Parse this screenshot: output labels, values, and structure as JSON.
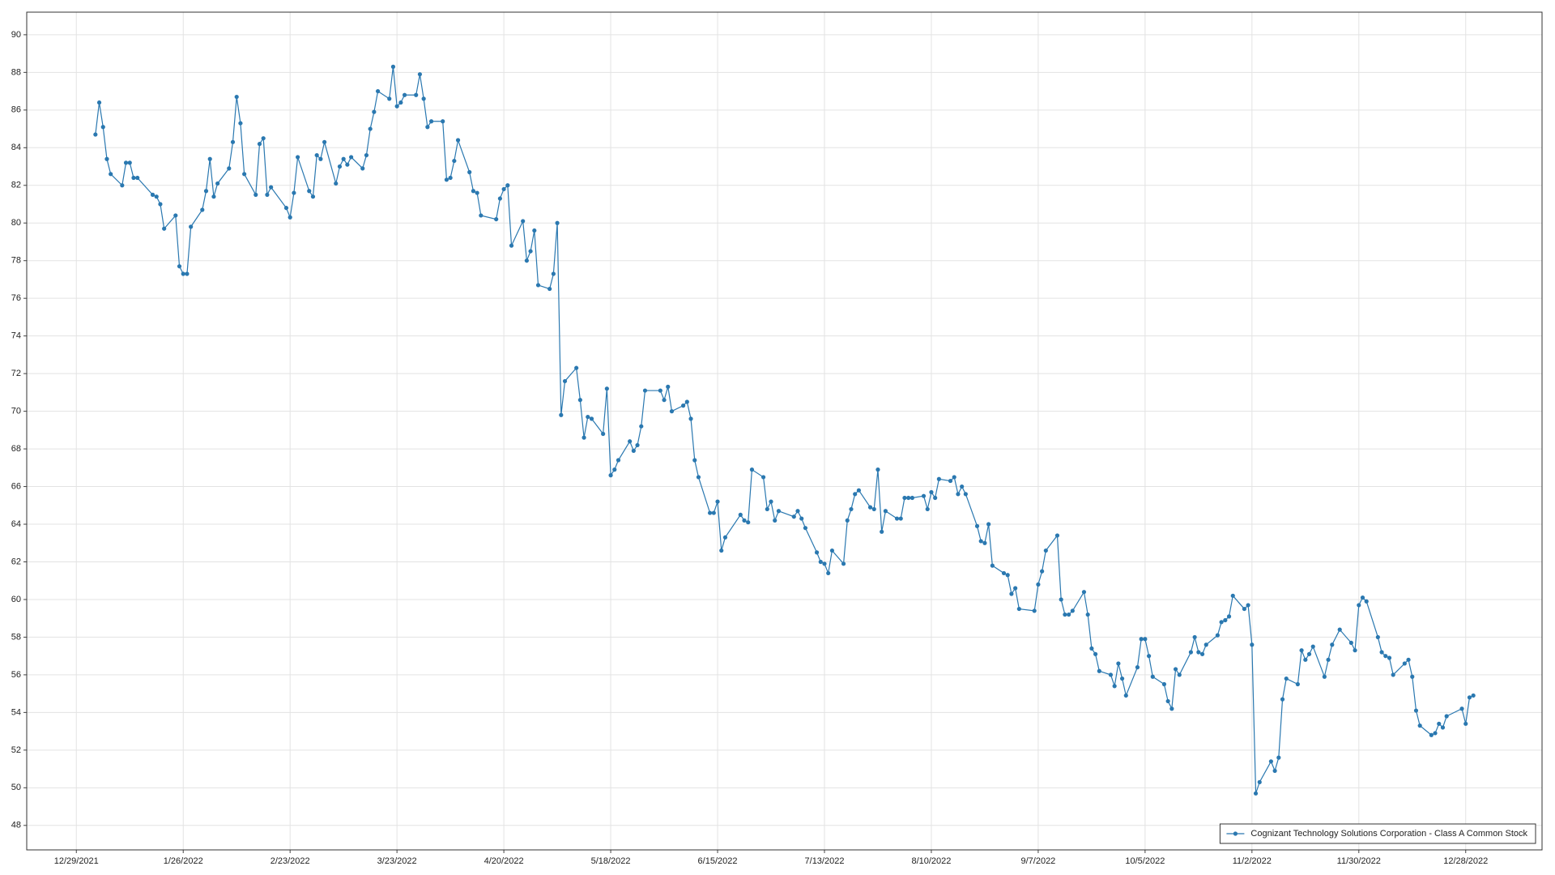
{
  "chart_data": {
    "type": "line",
    "x": [
      "2022-01-03",
      "2022-01-04",
      "2022-01-05",
      "2022-01-06",
      "2022-01-07",
      "2022-01-10",
      "2022-01-11",
      "2022-01-12",
      "2022-01-13",
      "2022-01-14",
      "2022-01-18",
      "2022-01-19",
      "2022-01-20",
      "2022-01-21",
      "2022-01-24",
      "2022-01-25",
      "2022-01-26",
      "2022-01-27",
      "2022-01-28",
      "2022-01-31",
      "2022-02-01",
      "2022-02-02",
      "2022-02-03",
      "2022-02-04",
      "2022-02-07",
      "2022-02-08",
      "2022-02-09",
      "2022-02-10",
      "2022-02-11",
      "2022-02-14",
      "2022-02-15",
      "2022-02-16",
      "2022-02-17",
      "2022-02-18",
      "2022-02-22",
      "2022-02-23",
      "2022-02-24",
      "2022-02-25",
      "2022-02-28",
      "2022-03-01",
      "2022-03-02",
      "2022-03-03",
      "2022-03-04",
      "2022-03-07",
      "2022-03-08",
      "2022-03-09",
      "2022-03-10",
      "2022-03-11",
      "2022-03-14",
      "2022-03-15",
      "2022-03-16",
      "2022-03-17",
      "2022-03-18",
      "2022-03-21",
      "2022-03-22",
      "2022-03-23",
      "2022-03-24",
      "2022-03-25",
      "2022-03-28",
      "2022-03-29",
      "2022-03-30",
      "2022-03-31",
      "2022-04-01",
      "2022-04-04",
      "2022-04-05",
      "2022-04-06",
      "2022-04-07",
      "2022-04-08",
      "2022-04-11",
      "2022-04-12",
      "2022-04-13",
      "2022-04-14",
      "2022-04-18",
      "2022-04-19",
      "2022-04-20",
      "2022-04-21",
      "2022-04-22",
      "2022-04-25",
      "2022-04-26",
      "2022-04-27",
      "2022-04-28",
      "2022-04-29",
      "2022-05-02",
      "2022-05-03",
      "2022-05-04",
      "2022-05-05",
      "2022-05-06",
      "2022-05-09",
      "2022-05-10",
      "2022-05-11",
      "2022-05-12",
      "2022-05-13",
      "2022-05-16",
      "2022-05-17",
      "2022-05-18",
      "2022-05-19",
      "2022-05-20",
      "2022-05-23",
      "2022-05-24",
      "2022-05-25",
      "2022-05-26",
      "2022-05-27",
      "2022-05-31",
      "2022-06-01",
      "2022-06-02",
      "2022-06-03",
      "2022-06-06",
      "2022-06-07",
      "2022-06-08",
      "2022-06-09",
      "2022-06-10",
      "2022-06-13",
      "2022-06-14",
      "2022-06-15",
      "2022-06-16",
      "2022-06-17",
      "2022-06-21",
      "2022-06-22",
      "2022-06-23",
      "2022-06-24",
      "2022-06-27",
      "2022-06-28",
      "2022-06-29",
      "2022-06-30",
      "2022-07-01",
      "2022-07-05",
      "2022-07-06",
      "2022-07-07",
      "2022-07-08",
      "2022-07-11",
      "2022-07-12",
      "2022-07-13",
      "2022-07-14",
      "2022-07-15",
      "2022-07-18",
      "2022-07-19",
      "2022-07-20",
      "2022-07-21",
      "2022-07-22",
      "2022-07-25",
      "2022-07-26",
      "2022-07-27",
      "2022-07-28",
      "2022-07-29",
      "2022-08-01",
      "2022-08-02",
      "2022-08-03",
      "2022-08-04",
      "2022-08-05",
      "2022-08-08",
      "2022-08-09",
      "2022-08-10",
      "2022-08-11",
      "2022-08-12",
      "2022-08-15",
      "2022-08-16",
      "2022-08-17",
      "2022-08-18",
      "2022-08-19",
      "2022-08-22",
      "2022-08-23",
      "2022-08-24",
      "2022-08-25",
      "2022-08-26",
      "2022-08-29",
      "2022-08-30",
      "2022-08-31",
      "2022-09-01",
      "2022-09-02",
      "2022-09-06",
      "2022-09-07",
      "2022-09-08",
      "2022-09-09",
      "2022-09-12",
      "2022-09-13",
      "2022-09-14",
      "2022-09-15",
      "2022-09-16",
      "2022-09-19",
      "2022-09-20",
      "2022-09-21",
      "2022-09-22",
      "2022-09-23",
      "2022-09-26",
      "2022-09-27",
      "2022-09-28",
      "2022-09-29",
      "2022-09-30",
      "2022-10-03",
      "2022-10-04",
      "2022-10-05",
      "2022-10-06",
      "2022-10-07",
      "2022-10-10",
      "2022-10-11",
      "2022-10-12",
      "2022-10-13",
      "2022-10-14",
      "2022-10-17",
      "2022-10-18",
      "2022-10-19",
      "2022-10-20",
      "2022-10-21",
      "2022-10-24",
      "2022-10-25",
      "2022-10-26",
      "2022-10-27",
      "2022-10-28",
      "2022-10-31",
      "2022-11-01",
      "2022-11-02",
      "2022-11-03",
      "2022-11-04",
      "2022-11-07",
      "2022-11-08",
      "2022-11-09",
      "2022-11-10",
      "2022-11-11",
      "2022-11-14",
      "2022-11-15",
      "2022-11-16",
      "2022-11-17",
      "2022-11-18",
      "2022-11-21",
      "2022-11-22",
      "2022-11-23",
      "2022-11-25",
      "2022-11-28",
      "2022-11-29",
      "2022-11-30",
      "2022-12-01",
      "2022-12-02",
      "2022-12-05",
      "2022-12-06",
      "2022-12-07",
      "2022-12-08",
      "2022-12-09",
      "2022-12-12",
      "2022-12-13",
      "2022-12-14",
      "2022-12-15",
      "2022-12-16",
      "2022-12-19",
      "2022-12-20",
      "2022-12-21",
      "2022-12-22",
      "2022-12-23",
      "2022-12-27",
      "2022-12-28",
      "2022-12-29",
      "2022-12-30"
    ],
    "series": [
      {
        "name": "Cognizant Technology Solutions Corporation - Class A Common Stock",
        "color": "#2a78b0",
        "values": [
          84.7,
          86.4,
          85.1,
          83.4,
          82.6,
          82.0,
          83.2,
          83.2,
          82.4,
          82.4,
          81.5,
          81.4,
          81.0,
          79.7,
          80.4,
          77.7,
          77.3,
          77.3,
          79.8,
          80.7,
          81.7,
          83.4,
          81.4,
          82.1,
          82.9,
          84.3,
          86.7,
          85.3,
          82.6,
          81.5,
          84.2,
          84.5,
          81.5,
          81.9,
          80.8,
          80.3,
          81.6,
          83.5,
          81.7,
          81.4,
          83.6,
          83.4,
          84.3,
          82.1,
          83.0,
          83.4,
          83.1,
          83.5,
          82.9,
          83.6,
          85.0,
          85.9,
          87.0,
          86.6,
          88.3,
          86.2,
          86.4,
          86.8,
          86.8,
          87.9,
          86.6,
          85.1,
          85.4,
          85.4,
          82.3,
          82.4,
          83.3,
          84.4,
          82.7,
          81.7,
          81.6,
          80.4,
          80.2,
          81.3,
          81.8,
          82.0,
          78.8,
          80.1,
          78.0,
          78.5,
          79.6,
          76.7,
          76.5,
          77.3,
          80.0,
          69.8,
          71.6,
          72.3,
          70.6,
          68.6,
          69.7,
          69.6,
          68.8,
          71.2,
          66.6,
          66.9,
          67.4,
          68.4,
          67.9,
          68.2,
          69.2,
          71.1,
          71.1,
          70.6,
          71.3,
          70.0,
          70.3,
          70.5,
          69.6,
          67.4,
          66.5,
          64.6,
          64.6,
          65.2,
          62.6,
          63.3,
          64.5,
          64.2,
          64.1,
          66.9,
          66.5,
          64.8,
          65.2,
          64.2,
          64.7,
          64.4,
          64.7,
          64.3,
          63.8,
          62.5,
          62.0,
          61.9,
          61.4,
          62.6,
          61.9,
          64.2,
          64.8,
          65.6,
          65.8,
          64.9,
          64.8,
          66.9,
          63.6,
          64.7,
          64.3,
          64.3,
          65.4,
          65.4,
          65.4,
          65.5,
          64.8,
          65.7,
          65.4,
          66.4,
          66.3,
          66.5,
          65.6,
          66.0,
          65.6,
          63.9,
          63.1,
          63.0,
          64.0,
          61.8,
          61.4,
          61.3,
          60.3,
          60.6,
          59.5,
          59.4,
          60.8,
          61.5,
          62.6,
          63.4,
          60.0,
          59.2,
          59.2,
          59.4,
          60.4,
          59.2,
          57.4,
          57.1,
          56.2,
          56.0,
          55.4,
          56.6,
          55.8,
          54.9,
          56.4,
          57.9,
          57.9,
          57.0,
          55.9,
          55.5,
          54.6,
          54.2,
          56.3,
          56.0,
          57.2,
          58.0,
          57.2,
          57.1,
          57.6,
          58.1,
          58.8,
          58.9,
          59.1,
          60.2,
          59.5,
          59.7,
          57.6,
          49.7,
          50.3,
          51.4,
          50.9,
          51.6,
          54.7,
          55.8,
          55.5,
          57.3,
          56.8,
          57.1,
          57.5,
          55.9,
          56.8,
          57.6,
          58.4,
          57.7,
          57.3,
          59.7,
          60.1,
          59.9,
          58.0,
          57.2,
          57.0,
          56.9,
          56.0,
          56.6,
          56.8,
          55.9,
          54.1,
          53.3,
          52.8,
          52.9,
          53.4,
          53.2,
          53.8,
          54.2,
          53.4,
          54.8,
          54.9
        ]
      }
    ],
    "xlim": [
      "2021-12-16",
      "2023-01-17"
    ],
    "xticks": [
      {
        "value": "2021-12-29",
        "label": "12/29/2021"
      },
      {
        "value": "2022-01-26",
        "label": "1/26/2022"
      },
      {
        "value": "2022-02-23",
        "label": "2/23/2022"
      },
      {
        "value": "2022-03-23",
        "label": "3/23/2022"
      },
      {
        "value": "2022-04-20",
        "label": "4/20/2022"
      },
      {
        "value": "2022-05-18",
        "label": "5/18/2022"
      },
      {
        "value": "2022-06-15",
        "label": "6/15/2022"
      },
      {
        "value": "2022-07-13",
        "label": "7/13/2022"
      },
      {
        "value": "2022-08-10",
        "label": "8/10/2022"
      },
      {
        "value": "2022-09-07",
        "label": "9/7/2022"
      },
      {
        "value": "2022-10-05",
        "label": "10/5/2022"
      },
      {
        "value": "2022-11-02",
        "label": "11/2/2022"
      },
      {
        "value": "2022-11-30",
        "label": "11/30/2022"
      },
      {
        "value": "2022-12-28",
        "label": "12/28/2022"
      }
    ],
    "ylim": [
      46.7,
      91.2
    ],
    "yticks": [
      48,
      50,
      52,
      54,
      56,
      58,
      60,
      62,
      64,
      66,
      68,
      70,
      72,
      74,
      76,
      78,
      80,
      82,
      84,
      86,
      88,
      90
    ],
    "grid": true,
    "legend": "lower right"
  }
}
